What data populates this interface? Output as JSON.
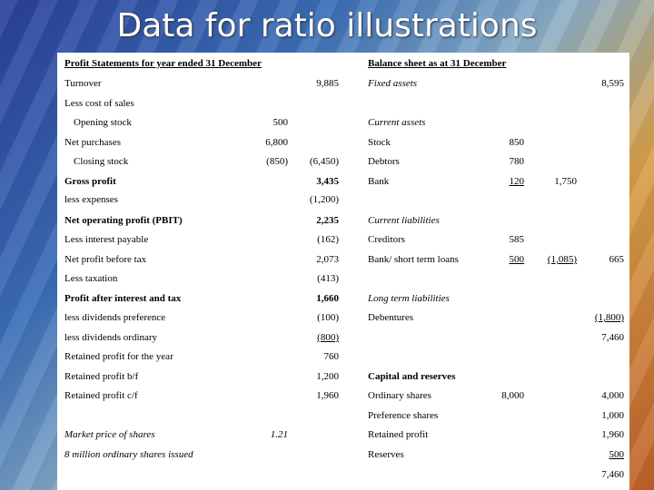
{
  "title": "Data for ratio illustrations",
  "pl": {
    "header": "Profit Statements for year ended 31 December",
    "turnover_label": "Turnover",
    "turnover": "9,885",
    "less_cos": "Less cost of sales",
    "opening_label": "Opening stock",
    "opening": "500",
    "net_purchases_label": "Net purchases",
    "net_purchases": "6,800",
    "closing_label": "Closing stock",
    "closing": "(850)",
    "cos_total": "(6,450)",
    "gross_label": "Gross profit",
    "gross": "3,435",
    "expenses_label": "less expenses",
    "expenses": "(1,200)",
    "pbit_label": "Net operating  profit (PBIT)",
    "pbit": "2,235",
    "interest_label": "Less interest payable",
    "interest": "(162)",
    "pbt_label": "Net profit before tax",
    "pbt": "2,073",
    "tax_label": "Less taxation",
    "tax": "(413)",
    "pat_label": "Profit after interest and tax",
    "pat": "1,660",
    "div_pref_label": "less dividends preference",
    "div_pref": "(100)",
    "div_ord_label": "less dividends ordinary",
    "div_ord": "(800)",
    "retained_label": "Retained profit for the year",
    "retained": "760",
    "bf_label": "Retained profit b/f",
    "bf": "1,200",
    "cf_label": "Retained profit c/f",
    "cf": "1,960",
    "market_label": "Market price of shares",
    "market": "1.21",
    "shares_label": "8 million ordinary shares issued"
  },
  "bs": {
    "header": "Balance sheet as at 31 December",
    "fixed_label": "Fixed assets",
    "fixed": "8,595",
    "current_label": "Current assets",
    "stock_label": "Stock",
    "stock": "850",
    "debtors_label": "Debtors",
    "debtors": "780",
    "bank_label": "Bank",
    "bank": "120",
    "ca_total": "1,750",
    "cl_label": "Current liabilities",
    "creditors_label": "Creditors",
    "creditors": "585",
    "loans_label": "Bank/ short term loans",
    "loans": "500",
    "cl_total": "(1,085)",
    "net_ca": "665",
    "ltl_label": "Long term liabilities",
    "debentures_label": "Debentures",
    "debentures": "(1,800)",
    "subtotal": "7,460",
    "cr_label": "Capital and reserves",
    "ord_label": "Ordinary shares",
    "ord_mid": "8,000",
    "ord": "4,000",
    "pref_label": "Preference shares",
    "pref": "1,000",
    "rp_label": "Retained profit",
    "rp": "1,960",
    "reserves_label": "Reserves",
    "reserves": "500",
    "total": "7,460"
  }
}
